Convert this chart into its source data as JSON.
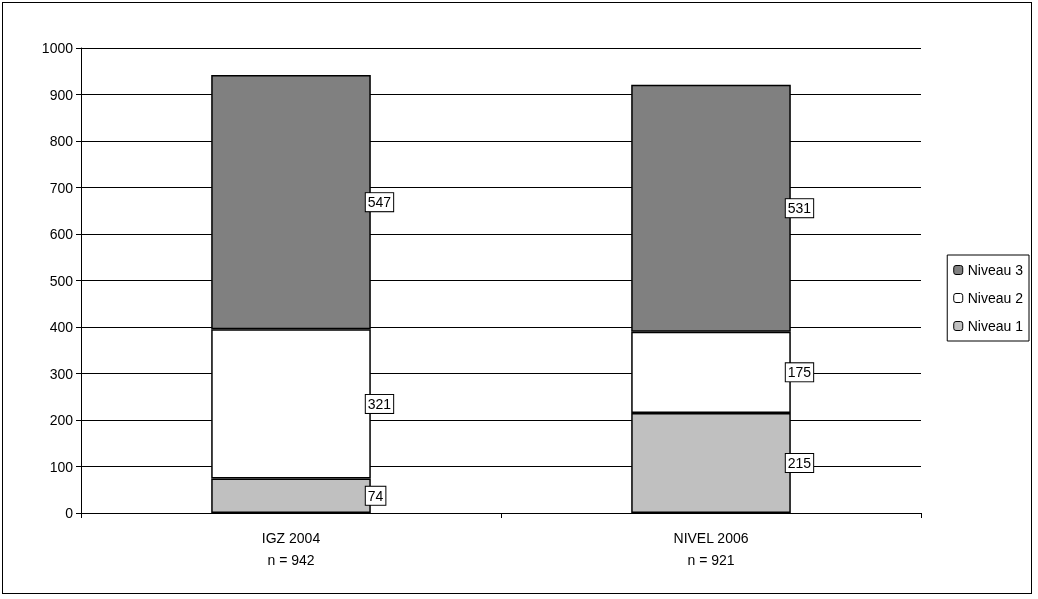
{
  "chart_data": {
    "type": "bar",
    "stacked": true,
    "categories": [
      "IGZ 2004\nn = 942",
      "NIVEL 2006\nn = 921"
    ],
    "series": [
      {
        "name": "Niveau 1",
        "color": "#c0c0c0",
        "values": [
          74,
          215
        ]
      },
      {
        "name": "Niveau 2",
        "color": "#ffffff",
        "values": [
          321,
          175
        ]
      },
      {
        "name": "Niveau 3",
        "color": "#808080",
        "values": [
          547,
          531
        ]
      }
    ],
    "ylim": [
      0,
      1000
    ],
    "yticks": [
      0,
      100,
      200,
      300,
      400,
      500,
      600,
      700,
      800,
      900,
      1000
    ],
    "grid": "y",
    "legend": "right",
    "data_labels": true
  }
}
